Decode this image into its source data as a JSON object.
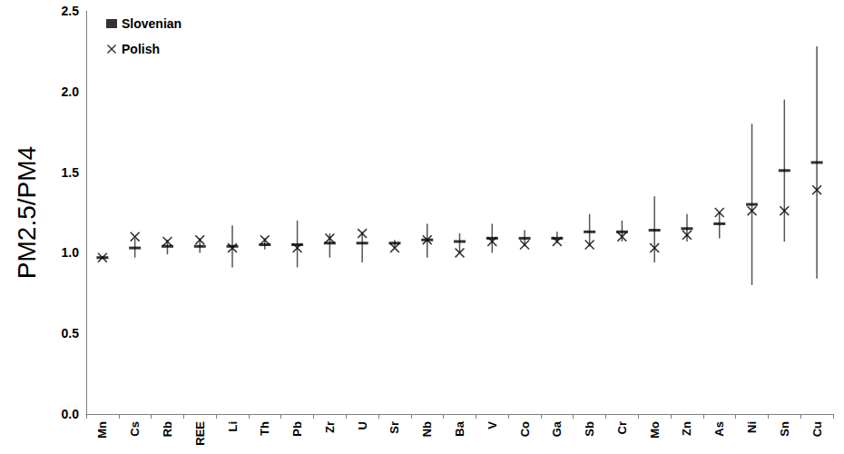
{
  "chart_data": {
    "type": "scatter",
    "ylabel": "PM2.5/PM4",
    "categories": [
      "Mn",
      "Cs",
      "Rb",
      "REE",
      "Li",
      "Th",
      "Pb",
      "Zr",
      "U",
      "Sr",
      "Nb",
      "Ba",
      "V",
      "Co",
      "Ga",
      "Sb",
      "Cr",
      "Mo",
      "Zn",
      "As",
      "Ni",
      "Sn",
      "Cu"
    ],
    "series": [
      {
        "name": "Slovenian",
        "color": "#000000",
        "marker": "dash",
        "values": [
          0.97,
          1.03,
          1.04,
          1.04,
          1.04,
          1.05,
          1.05,
          1.06,
          1.06,
          1.06,
          1.08,
          1.07,
          1.09,
          1.09,
          1.09,
          1.13,
          1.13,
          1.14,
          1.15,
          1.18,
          1.3,
          1.51,
          1.56
        ],
        "errors": [
          null,
          [
            0.97,
            1.09
          ],
          [
            0.99,
            1.08
          ],
          [
            1.0,
            1.09
          ],
          [
            0.91,
            1.17
          ],
          [
            1.02,
            1.09
          ],
          [
            0.91,
            1.2
          ],
          [
            0.97,
            1.12
          ],
          [
            0.94,
            1.13
          ],
          [
            1.03,
            1.08
          ],
          [
            0.97,
            1.18
          ],
          [
            1.0,
            1.12
          ],
          [
            1.0,
            1.18
          ],
          [
            1.04,
            1.14
          ],
          [
            1.06,
            1.13
          ],
          [
            1.04,
            1.24
          ],
          [
            1.07,
            1.2
          ],
          [
            0.94,
            1.35
          ],
          [
            1.07,
            1.24
          ],
          [
            1.09,
            1.25
          ],
          [
            0.8,
            1.8
          ],
          [
            1.07,
            1.95
          ],
          [
            0.84,
            2.28
          ]
        ]
      },
      {
        "name": "Polish",
        "color": "#000000",
        "marker": "x",
        "values": [
          0.97,
          1.1,
          1.07,
          1.08,
          1.03,
          1.08,
          1.03,
          1.09,
          1.12,
          1.03,
          1.08,
          1.0,
          1.07,
          1.05,
          1.07,
          1.05,
          1.1,
          1.03,
          1.11,
          1.25,
          1.26,
          1.26,
          1.39
        ]
      }
    ],
    "ylim": [
      0,
      2.5
    ],
    "yticks": [
      {
        "value": 0,
        "label": "0.0"
      },
      0.5,
      {
        "value": 1,
        "label": "1.0"
      },
      1.5,
      {
        "value": 2,
        "label": "2.0"
      },
      2.5
    ],
    "grid": false,
    "legend": "upper left"
  }
}
